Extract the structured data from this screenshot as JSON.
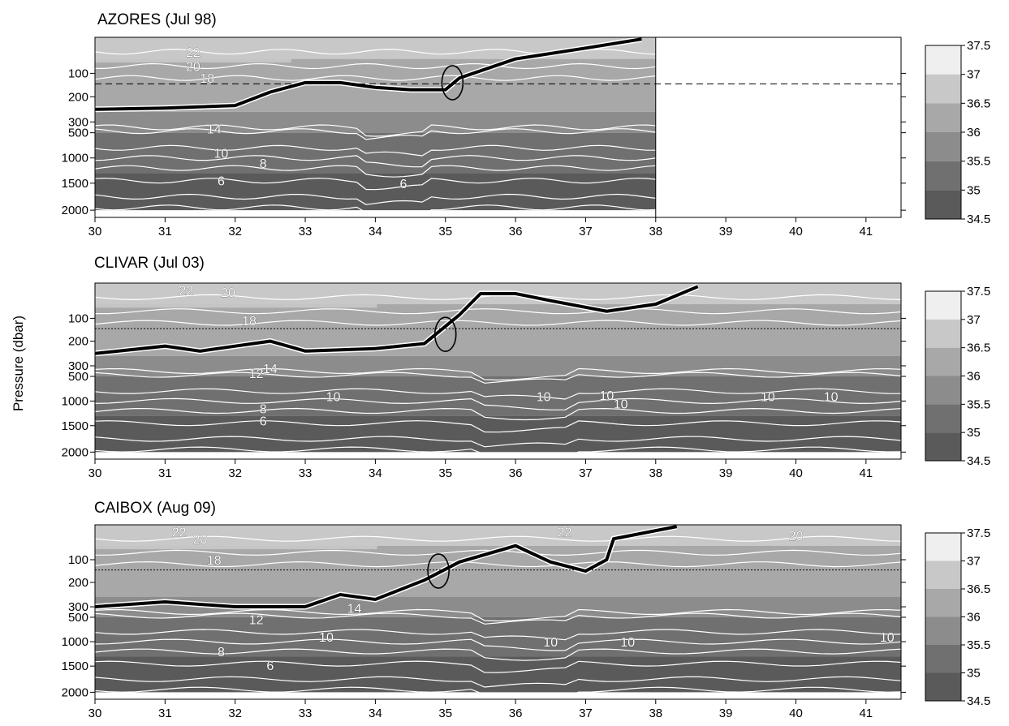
{
  "figure": {
    "ylabel": "Pressure (dbar)"
  },
  "colorbar": {
    "levels": [
      "37.5",
      "37",
      "36.5",
      "36",
      "35.5",
      "35",
      "34.5"
    ],
    "colors": [
      "#efefef",
      "#c8c8c8",
      "#a8a8a8",
      "#8c8c8c",
      "#707070",
      "#5a5a5a",
      "#3e3e3e"
    ]
  },
  "chart_data": [
    {
      "type": "heatmap",
      "title": "AZORES (Jul 98)",
      "xlim": [
        30,
        41.5
      ],
      "x_ticks": [
        "30",
        "31",
        "32",
        "33",
        "34",
        "35",
        "36",
        "37",
        "38",
        "39",
        "40",
        "41"
      ],
      "y_ticks": [
        "100",
        "200",
        "300",
        "500",
        "1000",
        "1500",
        "2000"
      ],
      "data_extent_x": [
        30,
        38
      ],
      "dashed_reference_line": true,
      "contour_labels": [
        {
          "text": "22",
          "x": 31.4,
          "p": 40
        },
        {
          "text": "20",
          "x": 31.4,
          "p": 80
        },
        {
          "text": "18",
          "x": 31.6,
          "p": 120
        },
        {
          "text": "14",
          "x": 31.7,
          "p": 420
        },
        {
          "text": "10",
          "x": 31.8,
          "p": 900
        },
        {
          "text": "8",
          "x": 32.4,
          "p": 1100
        },
        {
          "text": "6",
          "x": 31.8,
          "p": 1450
        },
        {
          "text": "6",
          "x": 34.4,
          "p": 1500
        }
      ],
      "front_line": [
        [
          30,
          250
        ],
        [
          31,
          245
        ],
        [
          32,
          235
        ],
        [
          32.5,
          180
        ],
        [
          33,
          140
        ],
        [
          33.5,
          140
        ],
        [
          34,
          160
        ],
        [
          34.5,
          170
        ],
        [
          35,
          170
        ],
        [
          35.2,
          120
        ],
        [
          36,
          60
        ],
        [
          37,
          30
        ],
        [
          37.8,
          5
        ]
      ],
      "circle": {
        "x": 35.1,
        "p": 140
      }
    },
    {
      "type": "heatmap",
      "title": "CLIVAR (Jul 03)",
      "xlim": [
        30,
        41.5
      ],
      "x_ticks": [
        "30",
        "31",
        "32",
        "33",
        "34",
        "35",
        "36",
        "37",
        "38",
        "39",
        "40",
        "41"
      ],
      "y_ticks": [
        "100",
        "200",
        "300",
        "500",
        "1000",
        "1500",
        "2000"
      ],
      "data_extent_x": [
        30,
        41.5
      ],
      "dashed_reference_line": true,
      "contour_labels": [
        {
          "text": "22",
          "x": 31.3,
          "p": 20
        },
        {
          "text": "20",
          "x": 31.9,
          "p": 25
        },
        {
          "text": "18",
          "x": 32.2,
          "p": 110
        },
        {
          "text": "14",
          "x": 32.5,
          "p": 350
        },
        {
          "text": "12",
          "x": 32.3,
          "p": 440
        },
        {
          "text": "10",
          "x": 33.4,
          "p": 900
        },
        {
          "text": "10",
          "x": 36.4,
          "p": 900
        },
        {
          "text": "10",
          "x": 37.3,
          "p": 880
        },
        {
          "text": "10",
          "x": 37.5,
          "p": 1050
        },
        {
          "text": "10",
          "x": 39.6,
          "p": 900
        },
        {
          "text": "10",
          "x": 40.5,
          "p": 900
        },
        {
          "text": "8",
          "x": 32.4,
          "p": 1150
        },
        {
          "text": "6",
          "x": 32.4,
          "p": 1400
        }
      ],
      "front_line": [
        [
          30,
          250
        ],
        [
          31,
          220
        ],
        [
          31.5,
          240
        ],
        [
          32,
          220
        ],
        [
          32.5,
          200
        ],
        [
          33,
          240
        ],
        [
          34,
          230
        ],
        [
          34.7,
          210
        ],
        [
          35.2,
          90
        ],
        [
          35.5,
          30
        ],
        [
          36,
          30
        ],
        [
          36.5,
          50
        ],
        [
          37.3,
          80
        ],
        [
          38,
          60
        ],
        [
          38.6,
          10
        ]
      ],
      "circle": {
        "x": 35,
        "p": 170
      }
    },
    {
      "type": "heatmap",
      "title": "CAIBOX (Aug 09)",
      "xlim": [
        30,
        41.5
      ],
      "x_ticks": [
        "30",
        "31",
        "32",
        "33",
        "34",
        "35",
        "36",
        "37",
        "38",
        "39",
        "40",
        "41"
      ],
      "y_ticks": [
        "100",
        "200",
        "300",
        "500",
        "1000",
        "1500",
        "2000"
      ],
      "data_extent_x": [
        30,
        41.5
      ],
      "dashed_reference_line": true,
      "contour_labels": [
        {
          "text": "22",
          "x": 31.2,
          "p": 20
        },
        {
          "text": "20",
          "x": 31.5,
          "p": 40
        },
        {
          "text": "18",
          "x": 31.7,
          "p": 100
        },
        {
          "text": "14",
          "x": 33.7,
          "p": 320
        },
        {
          "text": "12",
          "x": 32.3,
          "p": 540
        },
        {
          "text": "10",
          "x": 33.3,
          "p": 900
        },
        {
          "text": "10",
          "x": 36.5,
          "p": 1000
        },
        {
          "text": "10",
          "x": 37.6,
          "p": 1000
        },
        {
          "text": "10",
          "x": 41.3,
          "p": 900
        },
        {
          "text": "22",
          "x": 36.7,
          "p": 20
        },
        {
          "text": "20",
          "x": 40,
          "p": 30
        },
        {
          "text": "8",
          "x": 31.8,
          "p": 1200
        },
        {
          "text": "6",
          "x": 32.5,
          "p": 1480
        }
      ],
      "front_line": [
        [
          30,
          300
        ],
        [
          31,
          280
        ],
        [
          32,
          300
        ],
        [
          33,
          300
        ],
        [
          33.5,
          250
        ],
        [
          34,
          270
        ],
        [
          34.7,
          190
        ],
        [
          35.2,
          110
        ],
        [
          36,
          60
        ],
        [
          36.5,
          110
        ],
        [
          37,
          150
        ],
        [
          37.3,
          100
        ],
        [
          37.4,
          40
        ],
        [
          38.3,
          5
        ]
      ],
      "circle": {
        "x": 34.9,
        "p": 150
      }
    }
  ]
}
